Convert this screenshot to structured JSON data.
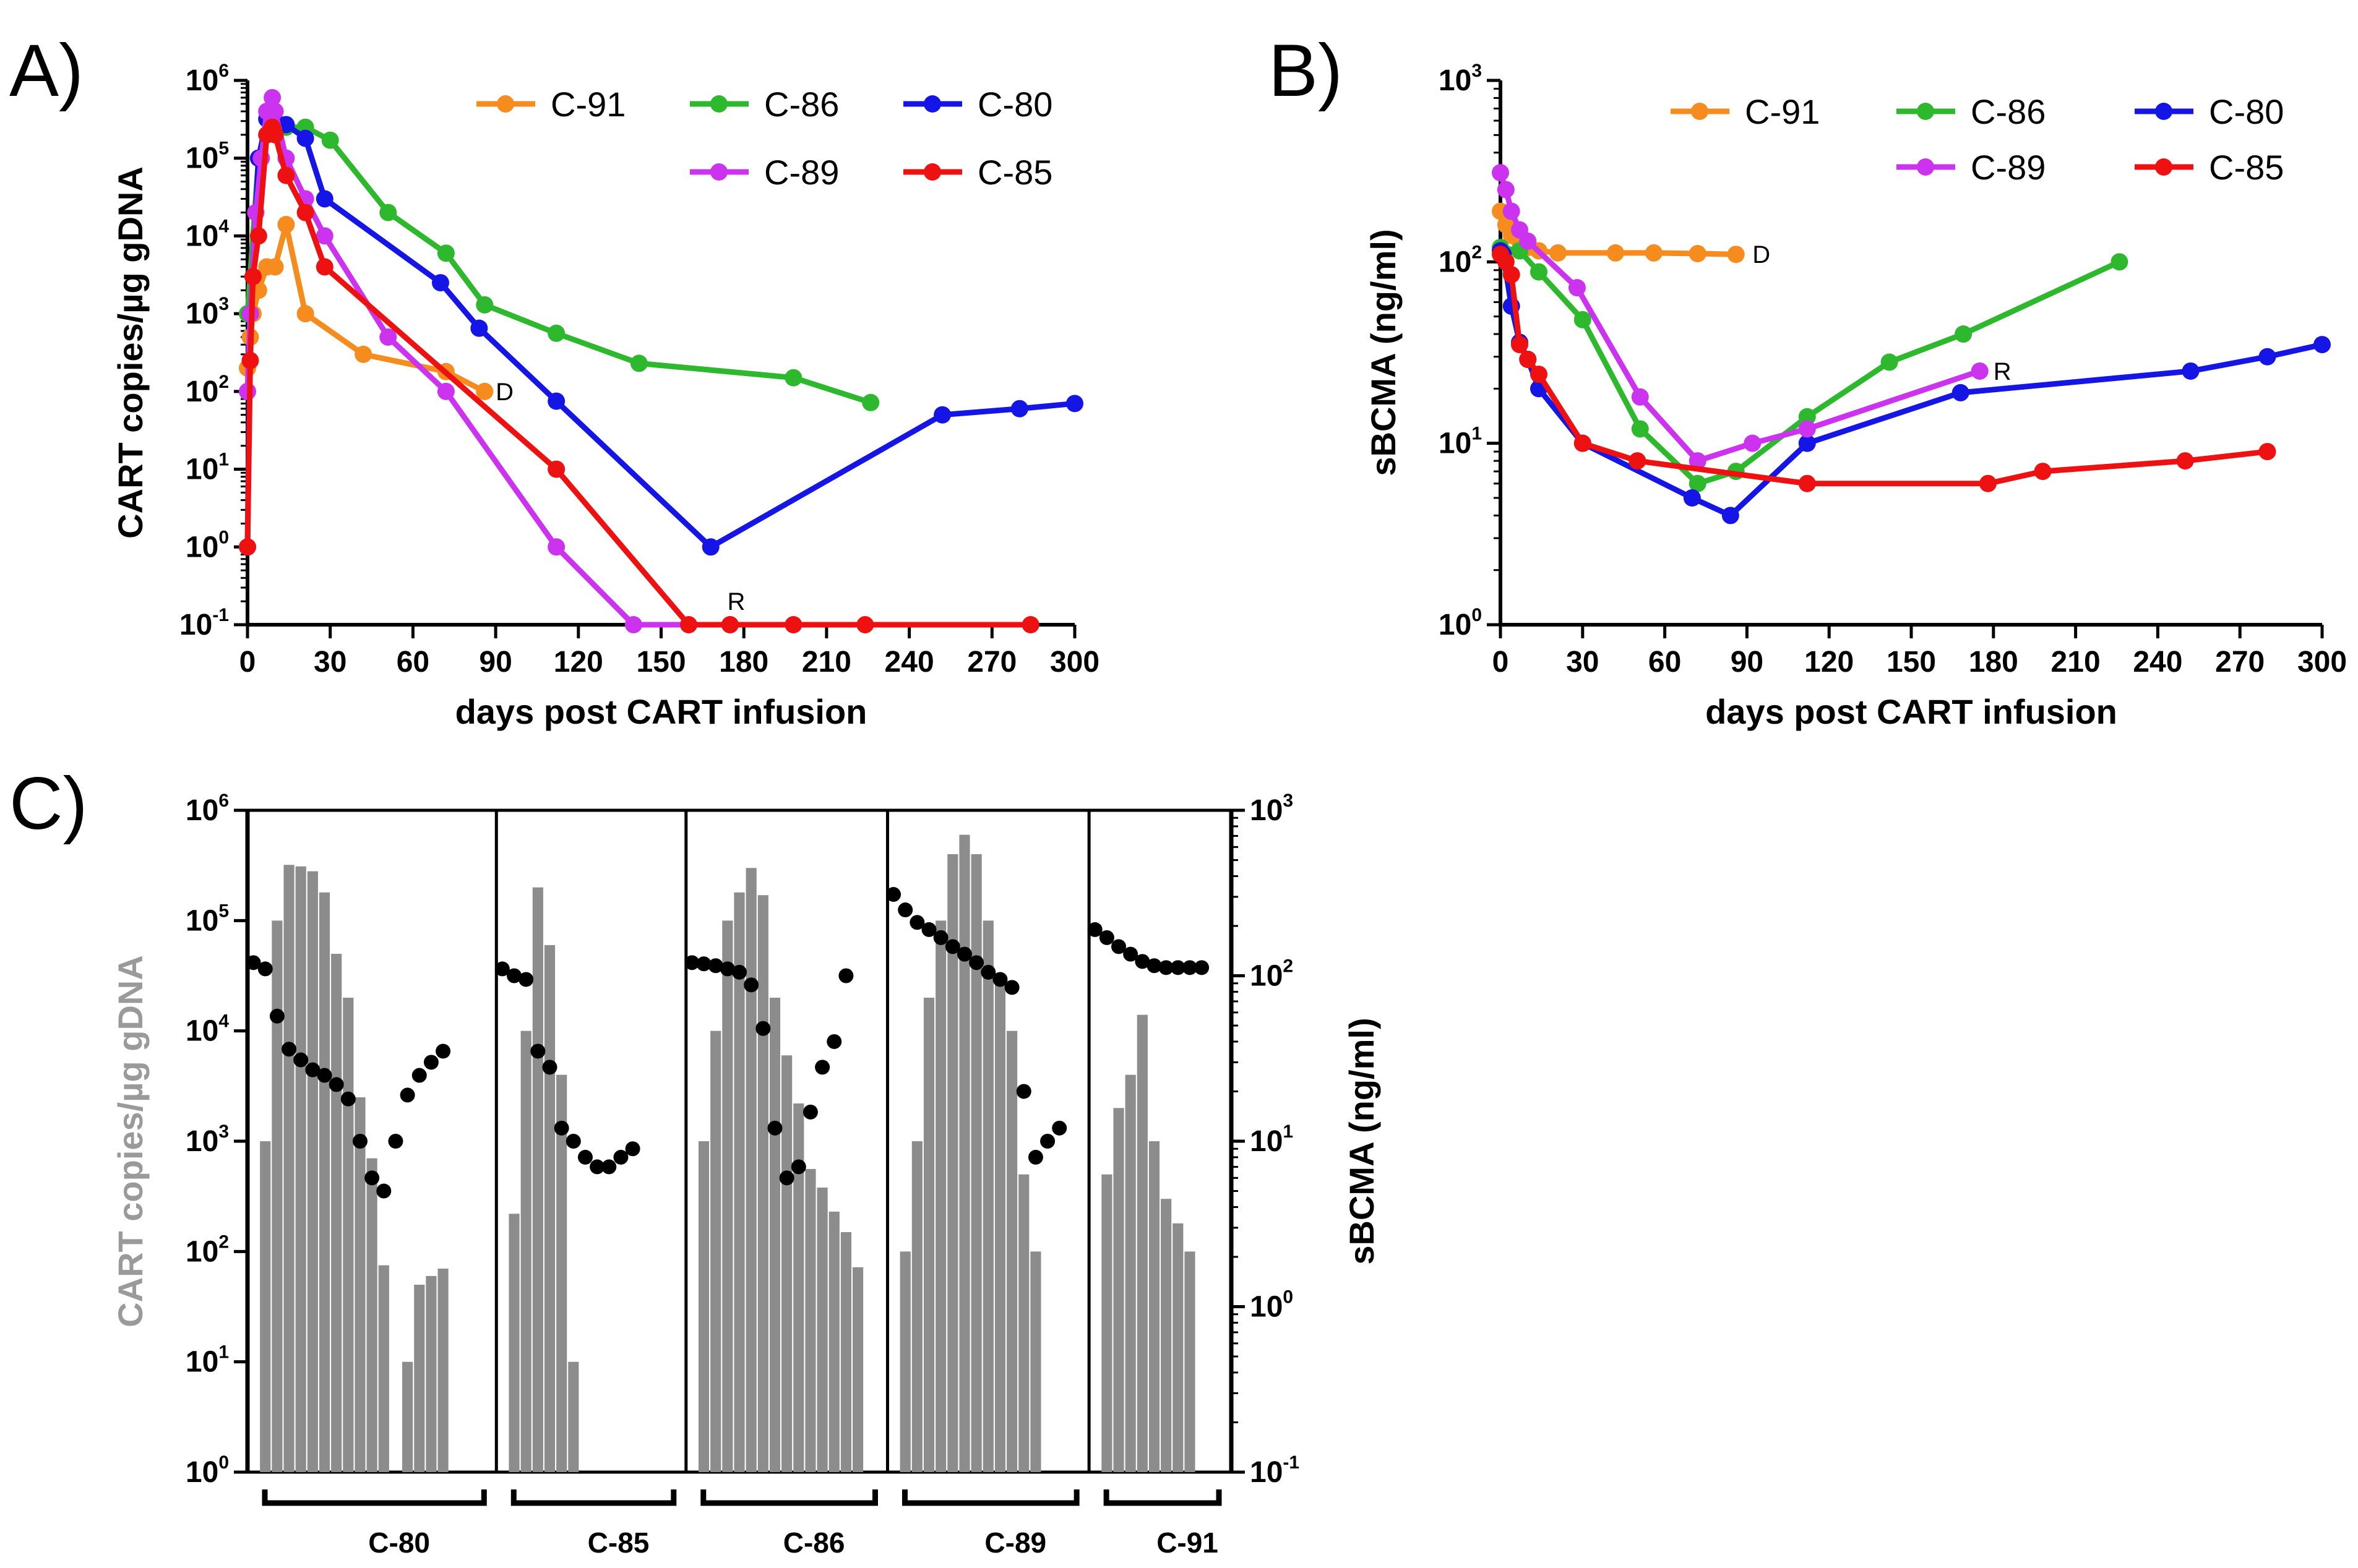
{
  "panels": {
    "A": {
      "letter": "A)"
    },
    "B": {
      "letter": "B)"
    },
    "C": {
      "letter": "C)"
    }
  },
  "colors": {
    "C-91": "#F68B1E",
    "C-86": "#2DB82D",
    "C-80": "#1515E6",
    "C-89": "#CC33EE",
    "C-85": "#EE1111",
    "bar": "#8C8C8C",
    "dot": "#000000",
    "gray_label": "#9A9A9A"
  },
  "chart_data": [
    {
      "id": "A",
      "type": "line",
      "title": "",
      "xlabel": "days post CART infusion",
      "ylabel": "CART copies/µg gDNA",
      "yscale": "log",
      "xlim": [
        0,
        300
      ],
      "ylim": [
        0.1,
        1000000
      ],
      "xticks": [
        0,
        30,
        60,
        90,
        120,
        150,
        180,
        210,
        240,
        270,
        300
      ],
      "yticks": [
        {
          "base": "10",
          "exp": "-1",
          "value": 0.1
        },
        {
          "base": "10",
          "exp": "0",
          "value": 1
        },
        {
          "base": "10",
          "exp": "1",
          "value": 10
        },
        {
          "base": "10",
          "exp": "2",
          "value": 100
        },
        {
          "base": "10",
          "exp": "3",
          "value": 1000
        },
        {
          "base": "10",
          "exp": "4",
          "value": 10000
        },
        {
          "base": "10",
          "exp": "5",
          "value": 100000
        },
        {
          "base": "10",
          "exp": "6",
          "value": 1000000
        }
      ],
      "legend": [
        "C-91",
        "C-86",
        "C-80",
        "C-89",
        "C-85"
      ],
      "series": [
        {
          "name": "C-91",
          "x": [
            0,
            1,
            2,
            4,
            7,
            10,
            14,
            21,
            42,
            72,
            86
          ],
          "y": [
            200,
            500,
            1000,
            2000,
            4000,
            4000,
            14000,
            1000,
            300,
            180,
            100
          ]
        },
        {
          "name": "C-86",
          "x": [
            0,
            4,
            7,
            10,
            14,
            21,
            30,
            51,
            72,
            86,
            112,
            142,
            198,
            226
          ],
          "y": [
            1000,
            100000,
            200000,
            300000,
            250000,
            250000,
            170000,
            20000,
            6000,
            1300,
            560,
            230,
            150,
            72
          ]
        },
        {
          "name": "C-80",
          "x": [
            0,
            1,
            4,
            7,
            10,
            14,
            21,
            28,
            70,
            84,
            112,
            168,
            252,
            280,
            300
          ],
          "y": [
            1,
            1000,
            100000,
            320000,
            300000,
            270000,
            180000,
            30000,
            2500,
            650,
            75,
            1,
            50,
            60,
            70
          ]
        },
        {
          "name": "C-89",
          "x": [
            0,
            1,
            3,
            5,
            7,
            9,
            10,
            14,
            21,
            28,
            51,
            72,
            112,
            140,
            175
          ],
          "y": [
            100,
            1000,
            20000,
            100000,
            400000,
            600000,
            400000,
            100000,
            30000,
            10000,
            500,
            100,
            1,
            0.1,
            0.1
          ]
        },
        {
          "name": "C-85",
          "x": [
            0,
            1,
            2,
            4,
            7,
            9,
            10,
            14,
            21,
            28,
            112,
            160,
            175,
            198,
            224,
            284
          ],
          "y": [
            1,
            250,
            3000,
            10000,
            200000,
            250000,
            200000,
            60000,
            20000,
            4000,
            10,
            0.1,
            0.1,
            0.1,
            0.1,
            0.1
          ]
        }
      ],
      "annotations": [
        {
          "text": "D",
          "x": 90,
          "y": 100
        },
        {
          "text": "R",
          "x": 174,
          "y": 0.2
        }
      ]
    },
    {
      "id": "B",
      "type": "line",
      "title": "",
      "xlabel": "days post CART infusion",
      "ylabel": "sBCMA (ng/ml)",
      "yscale": "log",
      "xlim": [
        0,
        300
      ],
      "ylim": [
        1,
        1000
      ],
      "xticks": [
        0,
        30,
        60,
        90,
        120,
        150,
        180,
        210,
        240,
        270,
        300
      ],
      "yticks": [
        {
          "base": "10",
          "exp": "0",
          "value": 1
        },
        {
          "base": "10",
          "exp": "1",
          "value": 10
        },
        {
          "base": "10",
          "exp": "2",
          "value": 100
        },
        {
          "base": "10",
          "exp": "3",
          "value": 1000
        }
      ],
      "legend": [
        "C-91",
        "C-86",
        "C-80",
        "C-89",
        "C-85"
      ],
      "series": [
        {
          "name": "C-91",
          "x": [
            0,
            2,
            4,
            7,
            10,
            14,
            21,
            42,
            56,
            72,
            86
          ],
          "y": [
            190,
            160,
            140,
            130,
            120,
            115,
            112,
            112,
            112,
            111,
            110
          ]
        },
        {
          "name": "C-86",
          "x": [
            0,
            7,
            14,
            30,
            51,
            72,
            86,
            112,
            142,
            169,
            226
          ],
          "y": [
            120,
            115,
            88,
            48,
            12,
            6,
            7,
            14,
            28,
            40,
            100
          ]
        },
        {
          "name": "C-80",
          "x": [
            0,
            1,
            4,
            7,
            10,
            14,
            30,
            70,
            84,
            112,
            168,
            252,
            280,
            300
          ],
          "y": [
            115,
            110,
            57,
            36,
            29,
            20,
            10,
            5,
            4,
            10,
            19,
            25,
            30,
            35
          ]
        },
        {
          "name": "C-89",
          "x": [
            0,
            2,
            4,
            7,
            10,
            28,
            51,
            72,
            92,
            112,
            175
          ],
          "y": [
            310,
            250,
            190,
            150,
            130,
            72,
            18,
            8,
            10,
            12,
            25
          ]
        },
        {
          "name": "C-85",
          "x": [
            0,
            2,
            4,
            7,
            10,
            14,
            30,
            50,
            112,
            178,
            198,
            250,
            280
          ],
          "y": [
            110,
            100,
            85,
            35,
            29,
            24,
            10,
            8,
            6,
            6,
            7,
            8,
            9
          ]
        }
      ],
      "annotations": [
        {
          "text": "D",
          "x": 92,
          "y": 110
        },
        {
          "text": "R",
          "x": 180,
          "y": 25
        }
      ]
    },
    {
      "id": "C",
      "type": "bar",
      "title": "",
      "ylabel_left": "CART copies/µg gDNA",
      "ylabel_right": "sBCMA (ng/ml)",
      "ylim_left": [
        1,
        1000000
      ],
      "ylim_right": [
        0.1,
        1000
      ],
      "yticks_left": [
        {
          "base": "10",
          "exp": "0",
          "value": 1
        },
        {
          "base": "10",
          "exp": "1",
          "value": 10
        },
        {
          "base": "10",
          "exp": "2",
          "value": 100
        },
        {
          "base": "10",
          "exp": "3",
          "value": 1000
        },
        {
          "base": "10",
          "exp": "4",
          "value": 10000
        },
        {
          "base": "10",
          "exp": "5",
          "value": 100000
        },
        {
          "base": "10",
          "exp": "6",
          "value": 1000000
        }
      ],
      "yticks_right": [
        {
          "base": "10",
          "exp": "-1",
          "value": 0.1
        },
        {
          "base": "10",
          "exp": "0",
          "value": 1
        },
        {
          "base": "10",
          "exp": "1",
          "value": 10
        },
        {
          "base": "10",
          "exp": "2",
          "value": 100
        },
        {
          "base": "10",
          "exp": "3",
          "value": 1000
        }
      ],
      "groups": [
        {
          "name": "C-80",
          "slots": 21,
          "bars": [
            null,
            1000,
            100000,
            320000,
            310000,
            280000,
            180000,
            50000,
            20000,
            2500,
            700,
            75,
            null,
            10,
            50,
            60,
            70,
            null,
            null,
            null,
            null
          ],
          "dots": [
            120,
            110,
            57,
            36,
            31,
            27,
            25,
            22,
            18,
            10,
            6,
            5,
            10,
            19,
            25,
            30,
            35,
            null,
            null,
            null,
            null
          ]
        },
        {
          "name": "C-85",
          "slots": 16,
          "bars": [
            null,
            220,
            10000,
            200000,
            60000,
            4000,
            10,
            null,
            null,
            null,
            null,
            null,
            null,
            null,
            null,
            null
          ],
          "dots": [
            110,
            100,
            95,
            35,
            28,
            12,
            10,
            8,
            7,
            7,
            8,
            9,
            null,
            null,
            null,
            null
          ]
        },
        {
          "name": "C-86",
          "slots": 17,
          "bars": [
            null,
            1000,
            10000,
            100000,
            180000,
            300000,
            170000,
            20000,
            6000,
            2200,
            560,
            380,
            230,
            150,
            72,
            null,
            null
          ],
          "dots": [
            120,
            118,
            115,
            110,
            105,
            88,
            48,
            12,
            6,
            7,
            15,
            28,
            40,
            100,
            null,
            null,
            null
          ],
          "slot_offsets": [
            0
          ]
        },
        {
          "name": "C-89",
          "slots": 17,
          "bars": [
            null,
            100,
            1000,
            20000,
            100000,
            400000,
            600000,
            400000,
            100000,
            30000,
            10000,
            500,
            100,
            null,
            null,
            null,
            null
          ],
          "dots": [
            310,
            250,
            210,
            190,
            170,
            150,
            135,
            120,
            105,
            95,
            85,
            20,
            8,
            10,
            12,
            null,
            null
          ]
        },
        {
          "name": "C-91",
          "slots": 12,
          "bars": [
            null,
            500,
            2000,
            4000,
            14000,
            1000,
            300,
            180,
            100,
            null,
            null,
            null
          ],
          "dots": [
            190,
            170,
            150,
            135,
            122,
            115,
            112,
            112,
            112,
            112,
            null,
            null
          ]
        }
      ]
    }
  ]
}
